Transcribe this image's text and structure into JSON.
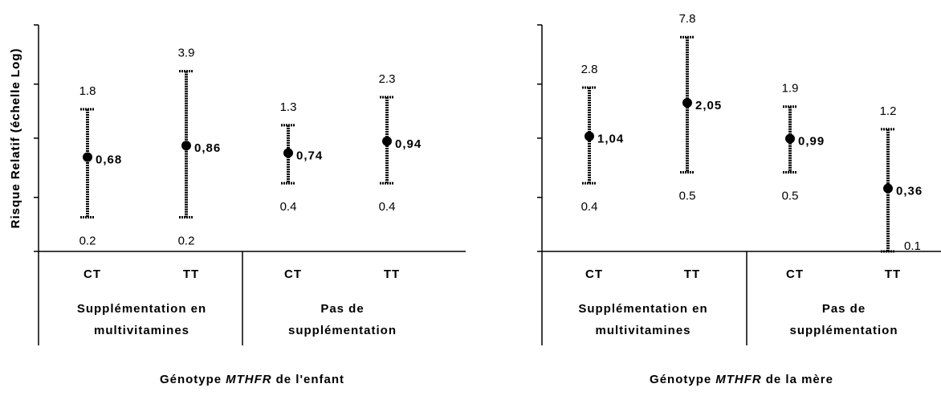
{
  "chart_data": [
    {
      "type": "errorbar",
      "ylabel": "Risque Relatif (échelle Log)",
      "xlabel_parts": [
        "Génotype",
        "MTHFR",
        "de l'enfant"
      ],
      "categories": [
        "CT",
        "TT",
        "CT",
        "TT"
      ],
      "groups": [
        [
          "Supplémentation en",
          "multivitamines"
        ],
        [
          "Pas de",
          "supplémentation"
        ]
      ],
      "values": [
        0.68,
        0.86,
        0.74,
        0.94
      ],
      "value_labels": [
        "0,68",
        "0,86",
        "0,74",
        "0,94"
      ],
      "ci_low": [
        0.2,
        0.2,
        0.4,
        0.4
      ],
      "ci_high": [
        1.8,
        3.9,
        1.3,
        2.3
      ],
      "log_scale": true,
      "ylim": [
        0.1,
        10
      ],
      "yticks": [
        0.1,
        0.3,
        1,
        3,
        10
      ],
      "color": "#000000"
    },
    {
      "type": "errorbar",
      "ylabel": "Risque Relatif (échelle Log)",
      "xlabel_parts": [
        "Génotype",
        "MTHFR",
        "de la mère"
      ],
      "categories": [
        "CT",
        "TT",
        "CT",
        "TT"
      ],
      "groups": [
        [
          "Supplémentation en",
          "multivitamines"
        ],
        [
          "Pas de",
          "supplémentation"
        ]
      ],
      "values": [
        1.04,
        2.05,
        0.99,
        0.36
      ],
      "value_labels": [
        "1,04",
        "2,05",
        "0,99",
        "0,36"
      ],
      "ci_low": [
        0.4,
        0.5,
        0.5,
        0.1
      ],
      "ci_high": [
        2.8,
        7.8,
        1.9,
        1.2
      ],
      "log_scale": true,
      "ylim": [
        0.1,
        10
      ],
      "yticks": [
        0.1,
        0.3,
        1,
        3,
        10
      ],
      "color": "#000000"
    }
  ]
}
